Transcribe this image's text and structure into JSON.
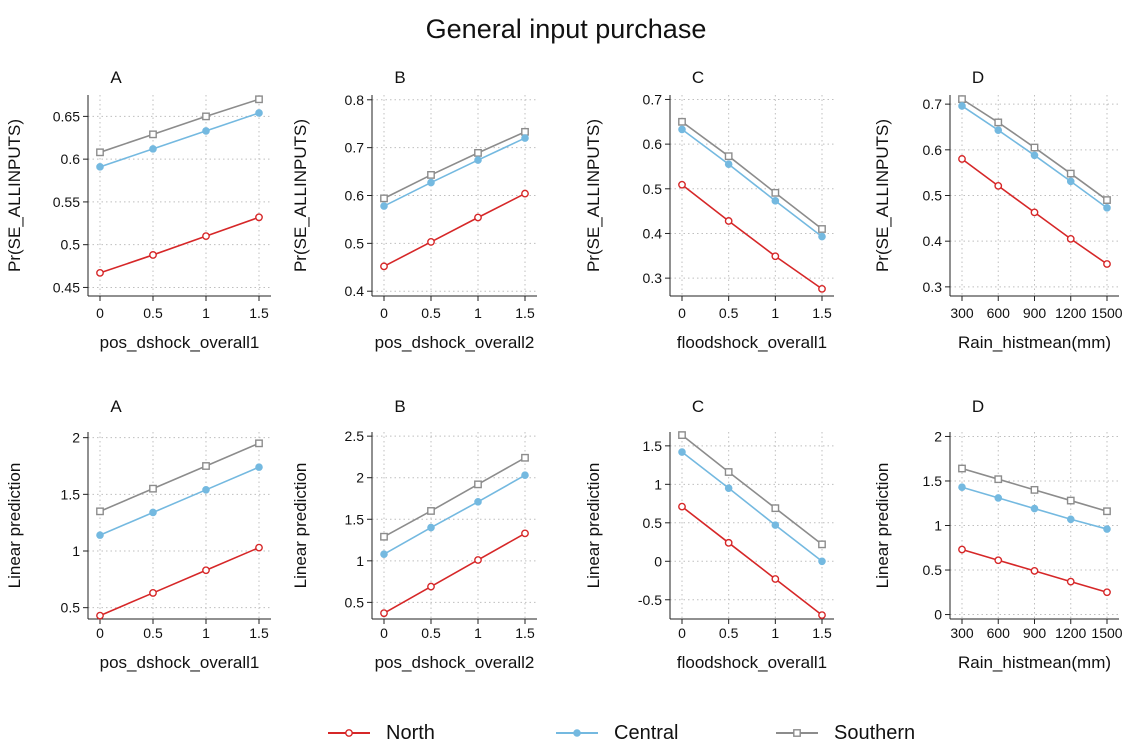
{
  "title": "General input purchase",
  "colors": {
    "North": "#d62728",
    "Central": "#74b9e0",
    "Southern": "#8c8c8c",
    "axis": "#222222",
    "grid": "#bfbfbf"
  },
  "legend": {
    "placement": "bottom-center",
    "items": [
      {
        "name": "North",
        "marker": "circle-open"
      },
      {
        "name": "Central",
        "marker": "circle-filled"
      },
      {
        "name": "Southern",
        "marker": "square-open"
      }
    ]
  },
  "chart_data": [
    {
      "type": "line",
      "panel": "A",
      "xlabel": "pos_dshock_overall1",
      "ylabel": "Pr(SE_ALLINPUTS)",
      "x": [
        0,
        0.5,
        1,
        1.5
      ],
      "xticks": [
        "0",
        "0.5",
        "1",
        "1.5"
      ],
      "ylim": [
        0.44,
        0.675
      ],
      "yticks": [
        0.45,
        0.5,
        0.55,
        0.6,
        0.65
      ],
      "ytick_labels": [
        "0.45",
        "0.5",
        "0.55",
        "0.6",
        "0.65"
      ],
      "grid": true,
      "series": [
        {
          "name": "North",
          "values": [
            0.467,
            0.488,
            0.51,
            0.532
          ]
        },
        {
          "name": "Central",
          "values": [
            0.591,
            0.612,
            0.633,
            0.654
          ]
        },
        {
          "name": "Southern",
          "values": [
            0.608,
            0.629,
            0.65,
            0.67
          ]
        }
      ]
    },
    {
      "type": "line",
      "panel": "B",
      "xlabel": "pos_dshock_overall2",
      "ylabel": "Pr(SE_ALLINPUTS)",
      "x": [
        0,
        0.5,
        1,
        1.5
      ],
      "xticks": [
        "0",
        "0.5",
        "1",
        "1.5"
      ],
      "ylim": [
        0.39,
        0.81
      ],
      "yticks": [
        0.4,
        0.5,
        0.6,
        0.7,
        0.8
      ],
      "ytick_labels": [
        "0.4",
        "0.5",
        "0.6",
        "0.7",
        "0.8"
      ],
      "grid": true,
      "series": [
        {
          "name": "North",
          "values": [
            0.452,
            0.503,
            0.554,
            0.604
          ]
        },
        {
          "name": "Central",
          "values": [
            0.578,
            0.627,
            0.674,
            0.72
          ]
        },
        {
          "name": "Southern",
          "values": [
            0.594,
            0.643,
            0.689,
            0.733
          ]
        }
      ]
    },
    {
      "type": "line",
      "panel": "C",
      "xlabel": "floodshock_overall1",
      "ylabel": "Pr(SE_ALLINPUTS)",
      "x": [
        0,
        0.5,
        1,
        1.5
      ],
      "xticks": [
        "0",
        "0.5",
        "1",
        "1.5"
      ],
      "ylim": [
        0.26,
        0.71
      ],
      "yticks": [
        0.3,
        0.4,
        0.5,
        0.6,
        0.7
      ],
      "ytick_labels": [
        "0.3",
        "0.4",
        "0.5",
        "0.6",
        "0.7"
      ],
      "grid": true,
      "series": [
        {
          "name": "North",
          "values": [
            0.509,
            0.428,
            0.349,
            0.276
          ]
        },
        {
          "name": "Central",
          "values": [
            0.633,
            0.555,
            0.473,
            0.393
          ]
        },
        {
          "name": "Southern",
          "values": [
            0.65,
            0.573,
            0.491,
            0.41
          ]
        }
      ]
    },
    {
      "type": "line",
      "panel": "D",
      "xlabel": "Rain_histmean(mm)",
      "ylabel": "Pr(SE_ALLINPUTS)",
      "x": [
        300,
        600,
        900,
        1200,
        1500
      ],
      "xticks": [
        "300",
        "600",
        "900",
        "1200",
        "1500"
      ],
      "ylim": [
        0.28,
        0.72
      ],
      "yticks": [
        0.3,
        0.4,
        0.5,
        0.6,
        0.7
      ],
      "ytick_labels": [
        "0.3",
        "0.4",
        "0.5",
        "0.6",
        "0.7"
      ],
      "grid": true,
      "series": [
        {
          "name": "North",
          "values": [
            0.58,
            0.521,
            0.463,
            0.405,
            0.35
          ]
        },
        {
          "name": "Central",
          "values": [
            0.696,
            0.643,
            0.588,
            0.531,
            0.473
          ]
        },
        {
          "name": "Southern",
          "values": [
            0.711,
            0.66,
            0.605,
            0.548,
            0.49
          ]
        }
      ]
    },
    {
      "type": "line",
      "panel": "A",
      "xlabel": "pos_dshock_overall1",
      "ylabel": "Linear prediction",
      "x": [
        0,
        0.5,
        1,
        1.5
      ],
      "xticks": [
        "0",
        "0.5",
        "1",
        "1.5"
      ],
      "ylim": [
        0.4,
        2.05
      ],
      "yticks": [
        0.5,
        1,
        1.5,
        2
      ],
      "ytick_labels": [
        "0.5",
        "1",
        "1.5",
        "2"
      ],
      "grid": true,
      "series": [
        {
          "name": "North",
          "values": [
            0.43,
            0.63,
            0.83,
            1.03
          ]
        },
        {
          "name": "Central",
          "values": [
            1.14,
            1.34,
            1.54,
            1.74
          ]
        },
        {
          "name": "Southern",
          "values": [
            1.35,
            1.55,
            1.75,
            1.95
          ]
        }
      ]
    },
    {
      "type": "line",
      "panel": "B",
      "xlabel": "pos_dshock_overall2",
      "ylabel": "Linear prediction",
      "x": [
        0,
        0.5,
        1,
        1.5
      ],
      "xticks": [
        "0",
        "0.5",
        "1",
        "1.5"
      ],
      "ylim": [
        0.3,
        2.55
      ],
      "yticks": [
        0.5,
        1,
        1.5,
        2,
        2.5
      ],
      "ytick_labels": [
        "0.5",
        "1",
        "1.5",
        "2",
        "2.5"
      ],
      "grid": true,
      "series": [
        {
          "name": "North",
          "values": [
            0.37,
            0.69,
            1.01,
            1.33
          ]
        },
        {
          "name": "Central",
          "values": [
            1.08,
            1.4,
            1.71,
            2.03
          ]
        },
        {
          "name": "Southern",
          "values": [
            1.29,
            1.6,
            1.92,
            2.24
          ]
        }
      ]
    },
    {
      "type": "line",
      "panel": "C",
      "xlabel": "floodshock_overall1",
      "ylabel": "Linear prediction",
      "x": [
        0,
        0.5,
        1,
        1.5
      ],
      "xticks": [
        "0",
        "0.5",
        "1",
        "1.5"
      ],
      "ylim": [
        -0.75,
        1.68
      ],
      "yticks": [
        -0.5,
        0,
        0.5,
        1,
        1.5
      ],
      "ytick_labels": [
        "-0.5",
        "0",
        "0.5",
        "1",
        "1.5"
      ],
      "grid": true,
      "series": [
        {
          "name": "North",
          "values": [
            0.71,
            0.24,
            -0.23,
            -0.7
          ]
        },
        {
          "name": "Central",
          "values": [
            1.42,
            0.95,
            0.47,
            0.0
          ]
        },
        {
          "name": "Southern",
          "values": [
            1.64,
            1.16,
            0.69,
            0.22
          ]
        }
      ]
    },
    {
      "type": "line",
      "panel": "D",
      "xlabel": "Rain_histmean(mm)",
      "ylabel": "Linear prediction",
      "x": [
        300,
        600,
        900,
        1200,
        1500
      ],
      "xticks": [
        "300",
        "600",
        "900",
        "1200",
        "1500"
      ],
      "ylim": [
        -0.05,
        2.05
      ],
      "yticks": [
        0,
        0.5,
        1,
        1.5,
        2
      ],
      "ytick_labels": [
        "0",
        "0.5",
        "1",
        "1.5",
        "2"
      ],
      "grid": true,
      "series": [
        {
          "name": "North",
          "values": [
            0.73,
            0.61,
            0.49,
            0.37,
            0.25
          ]
        },
        {
          "name": "Central",
          "values": [
            1.43,
            1.31,
            1.19,
            1.07,
            0.96
          ]
        },
        {
          "name": "Southern",
          "values": [
            1.64,
            1.52,
            1.4,
            1.28,
            1.16
          ]
        }
      ]
    }
  ]
}
